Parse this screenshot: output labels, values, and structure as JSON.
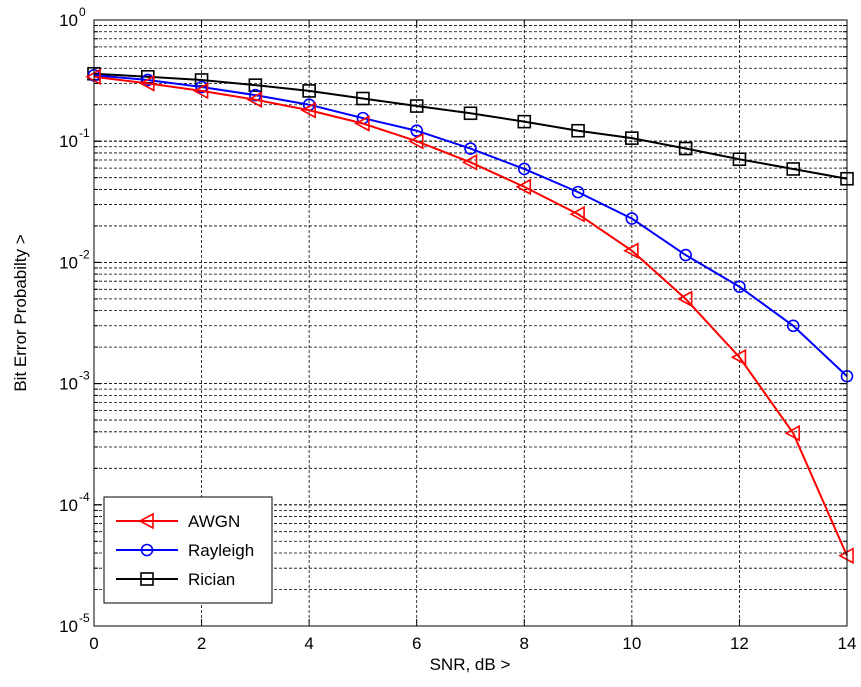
{
  "chart_data": {
    "type": "line",
    "title": "",
    "xlabel": "SNR, dB >",
    "ylabel": "Bit Error Probabilty >",
    "xlim": [
      0,
      14
    ],
    "ylim": [
      1e-05,
      1
    ],
    "yscale": "log",
    "grid": true,
    "legend_position": "bottom-left",
    "x_ticks": [
      0,
      2,
      4,
      6,
      8,
      10,
      12,
      14
    ],
    "x_tick_labels": [
      "0",
      "2",
      "4",
      "6",
      "8",
      "10",
      "12",
      "14"
    ],
    "y_ticks": [
      1e-05,
      0.0001,
      0.001,
      0.01,
      0.1,
      1
    ],
    "y_tick_labels": [
      {
        "base": "10",
        "exp": "-5"
      },
      {
        "base": "10",
        "exp": "-4"
      },
      {
        "base": "10",
        "exp": "-3"
      },
      {
        "base": "10",
        "exp": "-2"
      },
      {
        "base": "10",
        "exp": "-1"
      },
      {
        "base": "10",
        "exp": "0"
      }
    ],
    "x": [
      0,
      1,
      2,
      3,
      4,
      5,
      6,
      7,
      8,
      9,
      10,
      11,
      12,
      13,
      14
    ],
    "series": [
      {
        "name": "AWGN",
        "color": "#ff0000",
        "marker": "triangle-left",
        "values": [
          0.34,
          0.3,
          0.26,
          0.22,
          0.18,
          0.14,
          0.1,
          0.067,
          0.042,
          0.025,
          0.0125,
          0.005,
          0.00165,
          0.00039,
          3.8e-05
        ]
      },
      {
        "name": "Rayleigh",
        "color": "#0000ff",
        "marker": "circle",
        "values": [
          0.35,
          0.32,
          0.28,
          0.24,
          0.2,
          0.155,
          0.122,
          0.087,
          0.059,
          0.038,
          0.023,
          0.0115,
          0.0063,
          0.003,
          0.00115
        ]
      },
      {
        "name": "Rician",
        "color": "#000000",
        "marker": "square",
        "values": [
          0.36,
          0.34,
          0.32,
          0.29,
          0.26,
          0.225,
          0.195,
          0.17,
          0.145,
          0.122,
          0.106,
          0.087,
          0.071,
          0.059,
          0.049
        ]
      }
    ]
  }
}
